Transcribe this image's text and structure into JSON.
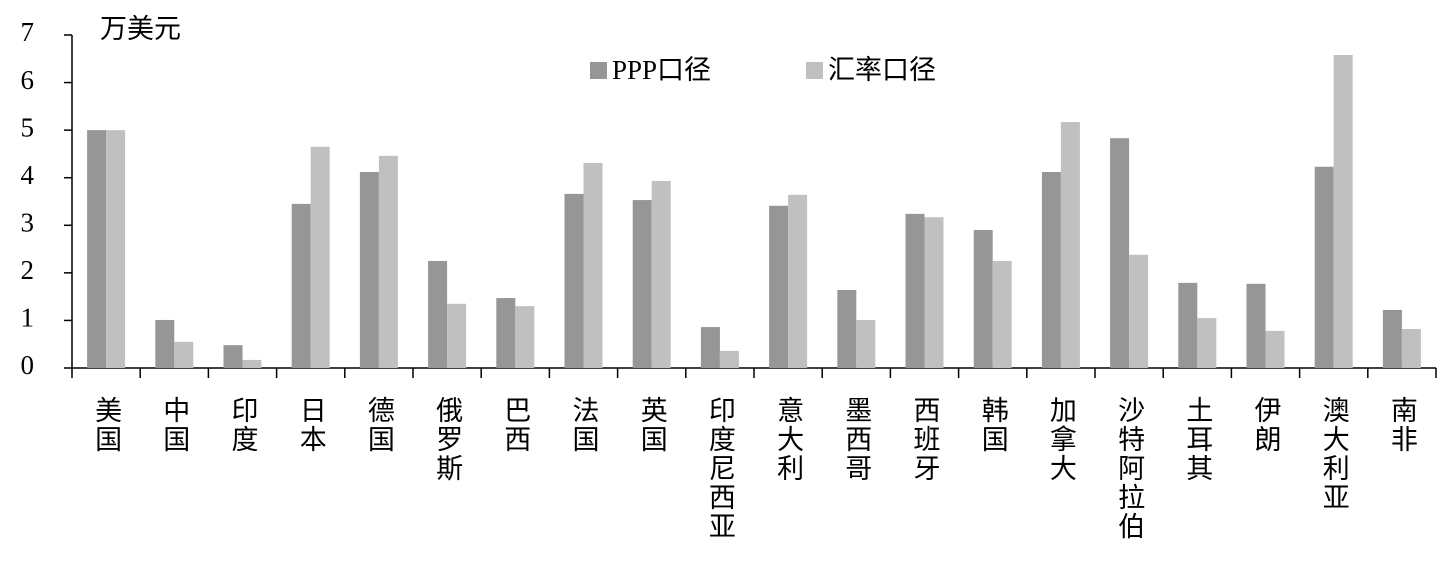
{
  "chart_data": {
    "type": "bar",
    "unit_label": "万美元",
    "categories": [
      "美国",
      "中国",
      "印度",
      "日本",
      "德国",
      "俄罗斯",
      "巴西",
      "法国",
      "英国",
      "印度尼西亚",
      "意大利",
      "墨西哥",
      "西班牙",
      "韩国",
      "加拿大",
      "沙特阿拉伯",
      "土耳其",
      "伊朗",
      "澳大利亚",
      "南非"
    ],
    "series": [
      {
        "name": "PPP口径",
        "color": "#969696",
        "values": [
          5.0,
          1.01,
          0.48,
          3.45,
          4.12,
          2.25,
          1.47,
          3.66,
          3.53,
          0.86,
          3.41,
          1.64,
          3.24,
          2.9,
          4.12,
          4.83,
          1.79,
          1.77,
          4.23,
          1.22
        ]
      },
      {
        "name": "汇率口径",
        "color": "#c0c0c0",
        "values": [
          5.0,
          0.55,
          0.17,
          4.65,
          4.46,
          1.35,
          1.3,
          4.31,
          3.93,
          0.36,
          3.64,
          1.01,
          3.17,
          2.25,
          5.17,
          2.38,
          1.05,
          0.78,
          6.58,
          0.82
        ]
      }
    ],
    "ylim": [
      0,
      7
    ],
    "yticks": [
      0,
      1,
      2,
      3,
      4,
      5,
      6,
      7
    ],
    "grid": false
  }
}
